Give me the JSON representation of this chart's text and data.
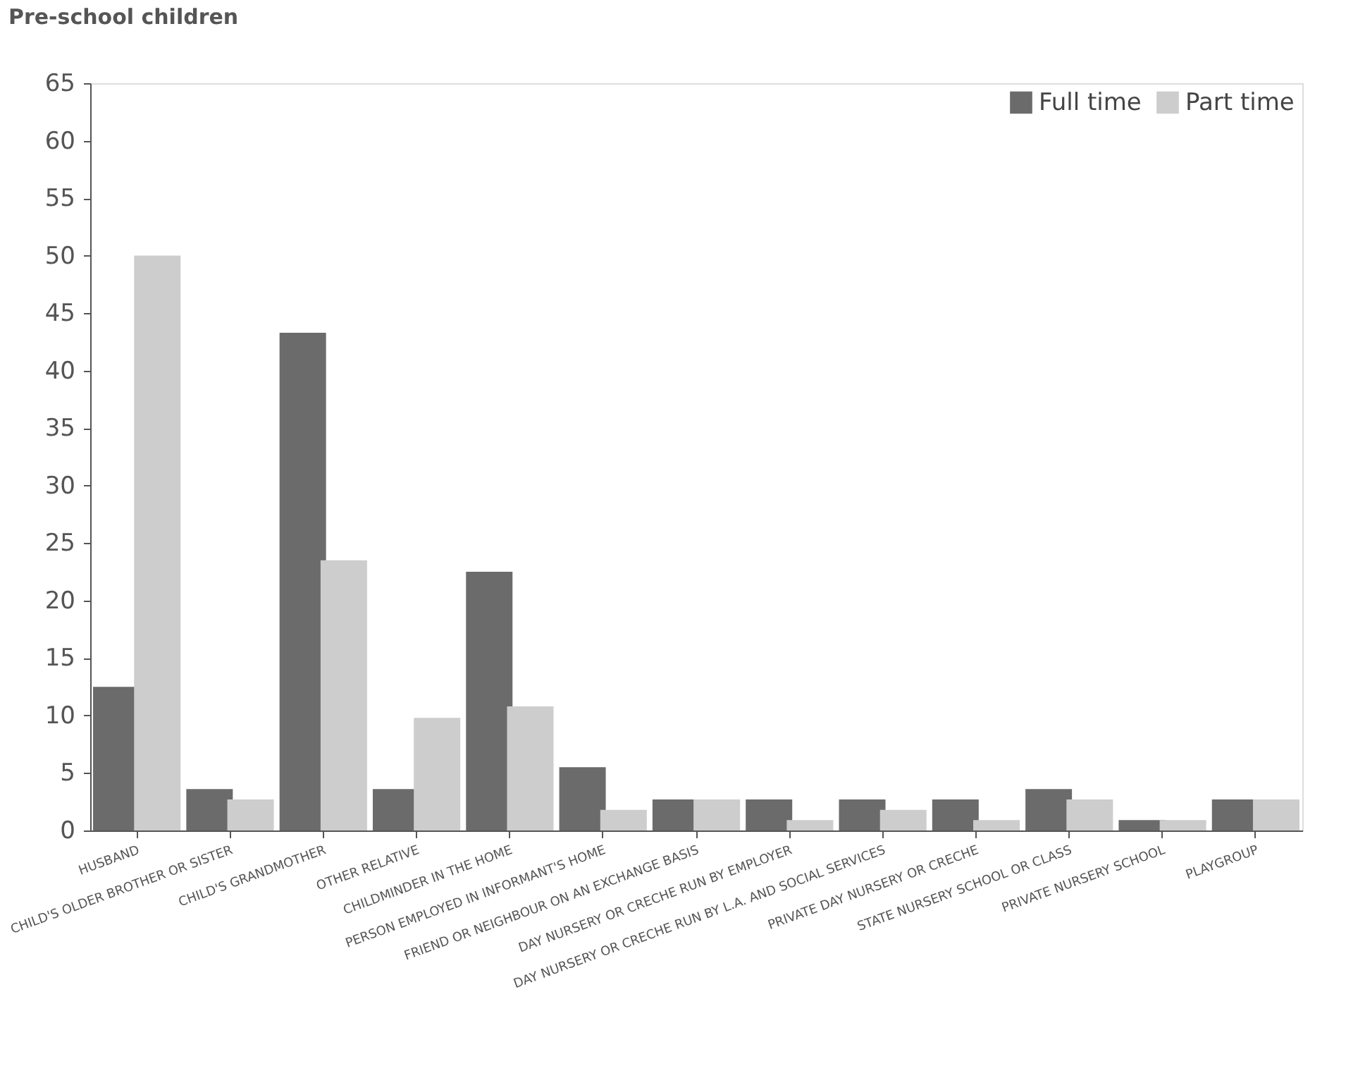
{
  "chart_data": {
    "type": "bar",
    "title": "Pre-school children",
    "categories": [
      "HUSBAND",
      "CHILD'S OLDER BROTHER OR SISTER",
      "CHILD'S GRANDMOTHER",
      "OTHER RELATIVE",
      "CHILDMINDER IN THE HOME",
      "PERSON EMPLOYED IN INFORMANT'S HOME",
      "FRIEND OR NEIGHBOUR ON AN EXCHANGE BASIS",
      "DAY NURSERY OR CRECHE RUN BY EMPLOYER",
      "DAY NURSERY OR CRECHE RUN BY L.A. AND SOCIAL SERVICES",
      "PRIVATE DAY NURSERY OR CRECHE",
      "STATE NURSERY SCHOOL OR CLASS",
      "PRIVATE NURSERY SCHOOL",
      "PLAYGROUP"
    ],
    "series": [
      {
        "name": "Full time",
        "color": "#6b6b6b",
        "values": [
          12.5,
          3.6,
          43.3,
          3.6,
          22.5,
          5.5,
          2.7,
          2.7,
          2.7,
          2.7,
          3.6,
          0.9,
          2.7
        ]
      },
      {
        "name": "Part time",
        "color": "#cdcdcd",
        "values": [
          50,
          2.7,
          23.5,
          9.8,
          10.8,
          1.8,
          2.7,
          0.9,
          1.8,
          0.9,
          2.7,
          0.9,
          2.7
        ]
      }
    ],
    "ylim": [
      0,
      65
    ],
    "yticks": [
      0,
      5,
      10,
      15,
      20,
      25,
      30,
      35,
      40,
      45,
      50,
      55,
      60,
      65
    ],
    "grid": false,
    "legend": "top right"
  }
}
